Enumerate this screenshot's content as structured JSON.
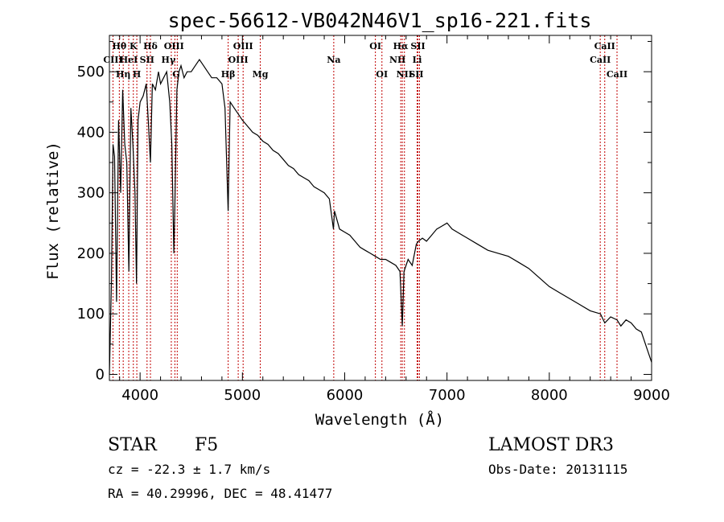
{
  "chart_data": {
    "type": "line",
    "title": "spec-56612-VB042N46V1_sp16-221.fits",
    "xlabel": "Wavelength (Å)",
    "ylabel": "Flux (relative)",
    "xlim": [
      3700,
      9000
    ],
    "ylim": [
      -10,
      560
    ],
    "xticks": [
      4000,
      5000,
      6000,
      7000,
      8000,
      9000
    ],
    "yticks": [
      0,
      100,
      200,
      300,
      400,
      500
    ],
    "grid": false,
    "series": [
      {
        "name": "flux",
        "x": [
          3700,
          3720,
          3735,
          3750,
          3770,
          3790,
          3810,
          3830,
          3850,
          3870,
          3890,
          3910,
          3930,
          3950,
          3965,
          3980,
          4000,
          4030,
          4060,
          4080,
          4101,
          4120,
          4150,
          4180,
          4200,
          4230,
          4260,
          4290,
          4310,
          4330,
          4340,
          4360,
          4380,
          4400,
          4430,
          4460,
          4500,
          4540,
          4580,
          4620,
          4660,
          4700,
          4750,
          4800,
          4830,
          4861,
          4880,
          4920,
          4960,
          5000,
          5050,
          5100,
          5150,
          5200,
          5250,
          5300,
          5350,
          5400,
          5450,
          5500,
          5550,
          5600,
          5650,
          5700,
          5750,
          5800,
          5850,
          5890,
          5900,
          5950,
          6000,
          6050,
          6100,
          6150,
          6200,
          6250,
          6300,
          6350,
          6400,
          6450,
          6500,
          6540,
          6563,
          6580,
          6620,
          6660,
          6700,
          6720,
          6760,
          6800,
          6850,
          6900,
          6950,
          7000,
          7050,
          7100,
          7150,
          7200,
          7300,
          7400,
          7500,
          7600,
          7700,
          7800,
          7900,
          8000,
          8100,
          8200,
          8300,
          8400,
          8500,
          8542,
          8600,
          8662,
          8700,
          8750,
          8800,
          8850,
          8900,
          8950,
          9000
        ],
        "y": [
          0,
          150,
          380,
          360,
          120,
          420,
          300,
          470,
          380,
          350,
          170,
          440,
          380,
          300,
          150,
          420,
          450,
          460,
          480,
          420,
          350,
          480,
          470,
          500,
          480,
          490,
          500,
          450,
          380,
          200,
          280,
          470,
          500,
          510,
          490,
          500,
          500,
          510,
          520,
          510,
          500,
          490,
          490,
          480,
          440,
          270,
          450,
          440,
          430,
          420,
          410,
          400,
          395,
          385,
          380,
          370,
          365,
          355,
          345,
          340,
          330,
          325,
          320,
          310,
          305,
          300,
          290,
          240,
          270,
          240,
          235,
          230,
          220,
          210,
          205,
          200,
          195,
          190,
          190,
          185,
          180,
          170,
          80,
          170,
          190,
          180,
          215,
          220,
          225,
          220,
          230,
          240,
          245,
          250,
          240,
          235,
          230,
          225,
          215,
          205,
          200,
          195,
          185,
          175,
          160,
          145,
          135,
          125,
          115,
          105,
          100,
          85,
          95,
          90,
          80,
          90,
          85,
          75,
          70,
          45,
          20
        ]
      }
    ],
    "lines": [
      {
        "label": "Hθ",
        "x": 3797,
        "row": 1,
        "dx": 0
      },
      {
        "label": "CIII",
        "x": 3735,
        "row": 2,
        "dx": 0
      },
      {
        "label": "Hη",
        "x": 3835,
        "row": 3,
        "dx": 0
      },
      {
        "label": "K",
        "x": 3934,
        "row": 1,
        "dx": 0
      },
      {
        "label": "HeI",
        "x": 3889,
        "row": 2,
        "dx": 0
      },
      {
        "label": "H",
        "x": 3968,
        "row": 3,
        "dx": 0
      },
      {
        "label": "Hδ",
        "x": 4101,
        "row": 1,
        "dx": 0
      },
      {
        "label": "SII",
        "x": 4068,
        "row": 2,
        "dx": 0
      },
      {
        "label": "OIII",
        "x": 4363,
        "row": 1,
        "dx": -4
      },
      {
        "label": "Hγ",
        "x": 4340,
        "row": 2,
        "dx": -8
      },
      {
        "label": "G",
        "x": 4305,
        "row": 3,
        "dx": 6
      },
      {
        "label": "Hβ",
        "x": 4861,
        "row": 3,
        "dx": 0
      },
      {
        "label": "OIII",
        "x": 5007,
        "row": 1,
        "dx": 0
      },
      {
        "label": "OIII",
        "x": 4959,
        "row": 2,
        "dx": 0
      },
      {
        "label": "Mg",
        "x": 5175,
        "row": 3,
        "dx": 0
      },
      {
        "label": "Na",
        "x": 5893,
        "row": 2,
        "dx": 0
      },
      {
        "label": "OI",
        "x": 6300,
        "row": 1,
        "dx": 0
      },
      {
        "label": "OI",
        "x": 6364,
        "row": 3,
        "dx": 0
      },
      {
        "label": "Hα",
        "x": 6563,
        "row": 1,
        "dx": -2
      },
      {
        "label": "SII",
        "x": 6716,
        "row": 1,
        "dx": 0
      },
      {
        "label": "NII",
        "x": 6548,
        "row": 2,
        "dx": -4
      },
      {
        "label": "Li",
        "x": 6708,
        "row": 2,
        "dx": 0
      },
      {
        "label": "NII",
        "x": 6584,
        "row": 3,
        "dx": 0
      },
      {
        "label": "SII",
        "x": 6731,
        "row": 3,
        "dx": -4
      },
      {
        "label": "CaII",
        "x": 8542,
        "row": 1,
        "dx": 0
      },
      {
        "label": "CaII",
        "x": 8498,
        "row": 2,
        "dx": 0
      },
      {
        "label": "CaII",
        "x": 8662,
        "row": 3,
        "dx": 0
      }
    ]
  },
  "info": {
    "class_label": "STAR",
    "subclass": "F5",
    "survey": "LAMOST DR3",
    "cz": "cz = -22.3 ± 1.7 km/s",
    "obs_date": "Obs-Date: 20131115",
    "coords": "RA =  40.29996, DEC =  48.41477"
  }
}
